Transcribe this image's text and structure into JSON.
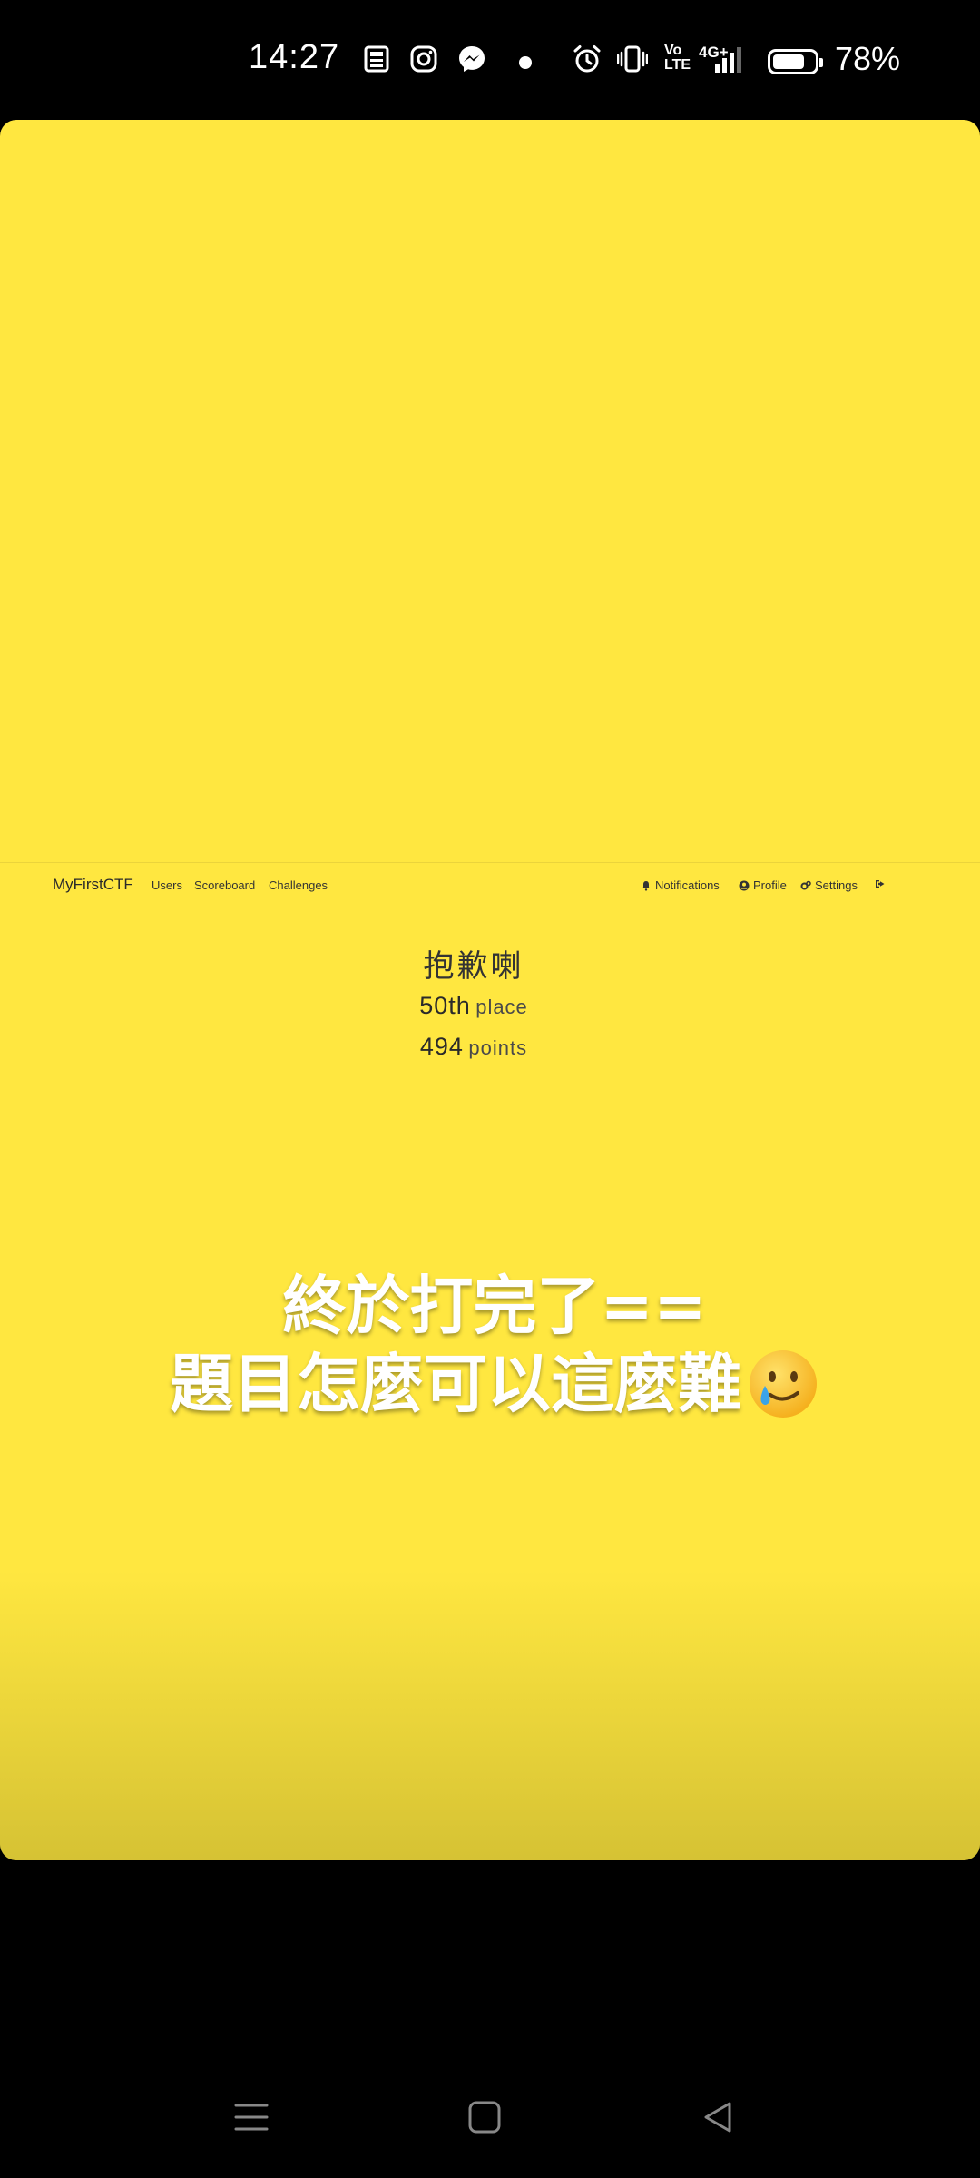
{
  "status_bar": {
    "time": "14:27",
    "icons": [
      "news-icon",
      "instagram-icon",
      "messenger-icon",
      "notification-dot",
      "alarm-icon",
      "vibrate-icon",
      "volte-icon",
      "signal-4g-icon",
      "battery-icon"
    ],
    "volte_label_top": "Vo",
    "volte_label_bottom": "LTE",
    "network_label": "4G+",
    "battery_percent": "78%",
    "battery_level": 0.78
  },
  "story": {
    "background_color": "#ffe740",
    "ctf_page": {
      "brand": "MyFirstCTF",
      "nav_left": [
        "Users",
        "Scoreboard",
        "Challenges"
      ],
      "nav_right": {
        "notifications": "Notifications",
        "profile": "Profile",
        "settings": "Settings"
      },
      "team_name": "抱歉喇",
      "place_number": "50th",
      "place_word": "place",
      "points_number": "494",
      "points_word": "points"
    },
    "caption": {
      "line1": "終於打完了==",
      "line2": "題目怎麼可以這麼難",
      "emoji": "smiling-face-with-tear"
    }
  },
  "nav_bar": {
    "buttons": [
      "menu-button",
      "home-button",
      "back-button"
    ]
  }
}
